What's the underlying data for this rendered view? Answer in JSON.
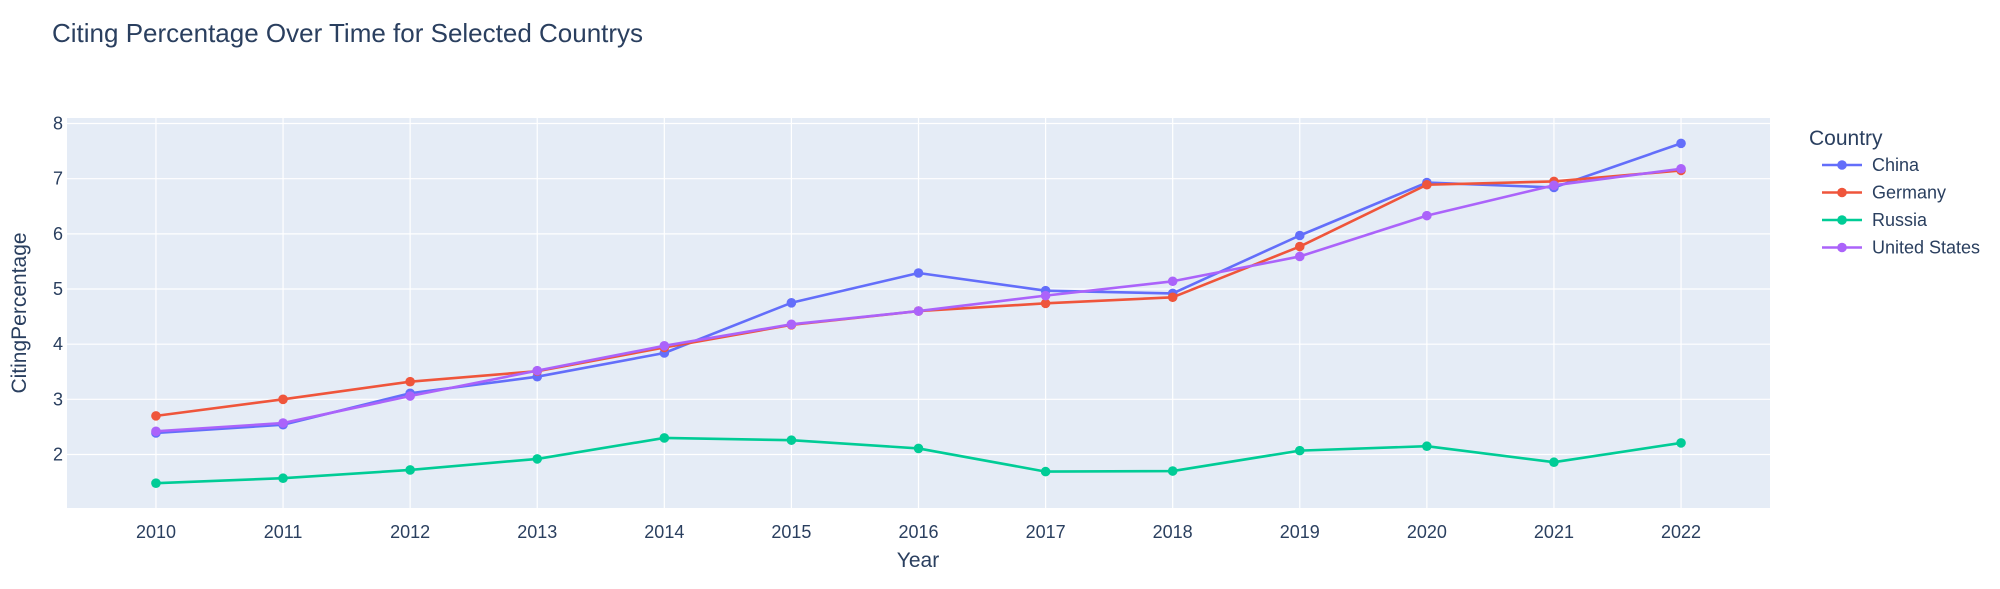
{
  "chart_data": {
    "type": "line",
    "title": "Citing Percentage Over Time for Selected Countrys",
    "xlabel": "Year",
    "ylabel": "CitingPercentage",
    "x": [
      2010,
      2011,
      2012,
      2013,
      2014,
      2015,
      2016,
      2017,
      2018,
      2019,
      2020,
      2021,
      2022
    ],
    "xlim": [
      2009.3,
      2022.7
    ],
    "ylim": [
      1.03,
      8.1
    ],
    "yticks": [
      2,
      3,
      4,
      5,
      6,
      7,
      8
    ],
    "grid": true,
    "legend_title": "Country",
    "legend_position": "top-right outside",
    "series": [
      {
        "name": "China",
        "color": "#636efa",
        "values": [
          2.39,
          2.54,
          3.11,
          3.41,
          3.84,
          4.75,
          5.29,
          4.97,
          4.92,
          5.97,
          6.93,
          6.84,
          7.64
        ]
      },
      {
        "name": "Germany",
        "color": "#ef553b",
        "values": [
          2.7,
          3.0,
          3.32,
          3.51,
          3.94,
          4.35,
          4.6,
          4.74,
          4.85,
          5.77,
          6.89,
          6.95,
          7.15
        ]
      },
      {
        "name": "Russia",
        "color": "#00cc96",
        "values": [
          1.48,
          1.57,
          1.72,
          1.92,
          2.3,
          2.26,
          2.11,
          1.69,
          1.7,
          2.07,
          2.15,
          1.86,
          2.21
        ]
      },
      {
        "name": "United States",
        "color": "#ab63fa",
        "values": [
          2.42,
          2.57,
          3.06,
          3.52,
          3.97,
          4.36,
          4.6,
          4.88,
          5.14,
          5.59,
          6.33,
          6.88,
          7.18
        ]
      }
    ]
  }
}
